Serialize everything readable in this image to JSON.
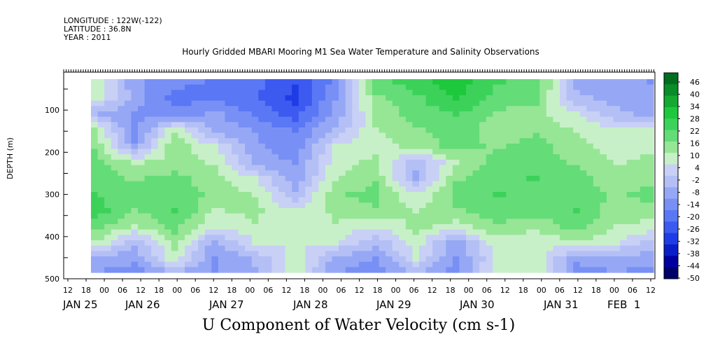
{
  "header": {
    "longitude": "LONGITUDE : 122W(-122)",
    "latitude": "LATITUDE : 36.8N",
    "year": "YEAR : 2011"
  },
  "chart_data": {
    "type": "heatmap",
    "title": "Hourly Gridded MBARI Mooring M1 Sea Water Temperature and Salinity Observations",
    "xlabel": "U Component of Water Velocity (cm s-1)",
    "ylabel": "DEPTH (m)",
    "ylim": [
      500,
      10
    ],
    "yticks": [
      100,
      200,
      300,
      400,
      500
    ],
    "x_start_hour_label": "12",
    "hour_tick_labels": [
      "12",
      "18",
      "00",
      "06",
      "12",
      "18",
      "00",
      "06",
      "12",
      "18",
      "00",
      "06",
      "12",
      "18",
      "00",
      "06",
      "12",
      "18",
      "00",
      "06",
      "12",
      "18",
      "00",
      "06",
      "12",
      "18",
      "00",
      "06",
      "12",
      "18",
      "00",
      "06",
      "12"
    ],
    "day_labels": [
      "JAN 25",
      "JAN 26",
      "JAN 27",
      "JAN 28",
      "JAN 29",
      "JAN 30",
      "JAN 31",
      "FEB  1"
    ],
    "colorbar": {
      "labels": [
        "46",
        "40",
        "34",
        "28",
        "22",
        "16",
        "10",
        "4",
        "-2",
        "-8",
        "-14",
        "-20",
        "-26",
        "-32",
        "-38",
        "-44",
        "-50"
      ],
      "min": -50,
      "max": 49,
      "colors": [
        "#00006a",
        "#0000a0",
        "#0a1ec8",
        "#1e3ce6",
        "#3c5af0",
        "#5a78f5",
        "#7890f5",
        "#96a8f5",
        "#b4c0f5",
        "#c8d0f5",
        "#c8f0c8",
        "#96e696",
        "#64dc78",
        "#3cd25a",
        "#1ec83c",
        "#14aa32",
        "#0a8c28",
        "#006e1e"
      ]
    },
    "note_columns": [
      "JAN 25 18",
      "JAN 26 00",
      "JAN 26 12",
      "JAN 27 00",
      "JAN 27 12",
      "JAN 28 00",
      "JAN 28 12",
      "JAN 29 00",
      "JAN 29 12",
      "JAN 30 00",
      "JAN 30 12",
      "JAN 31 00",
      "JAN 31 12",
      "FEB  1 00",
      "FEB  1 12"
    ],
    "depth_rows": [
      20,
      60,
      100,
      140,
      180,
      220,
      260,
      300,
      340,
      380,
      420,
      460,
      490
    ],
    "values": [
      [
        10,
        -10,
        -15,
        -18,
        -20,
        -28,
        -15,
        18,
        25,
        30,
        22,
        20,
        -8,
        -10,
        -12
      ],
      [
        8,
        -8,
        -20,
        -18,
        -22,
        -30,
        -12,
        15,
        20,
        28,
        20,
        18,
        -5,
        -8,
        -10
      ],
      [
        -5,
        -12,
        -15,
        -10,
        -18,
        -25,
        -10,
        12,
        18,
        22,
        15,
        12,
        5,
        -5,
        -8
      ],
      [
        12,
        -15,
        10,
        -8,
        -12,
        -18,
        -5,
        10,
        15,
        20,
        12,
        15,
        10,
        5,
        5
      ],
      [
        15,
        -10,
        15,
        5,
        -10,
        -15,
        5,
        8,
        12,
        18,
        15,
        18,
        12,
        8,
        10
      ],
      [
        18,
        10,
        12,
        10,
        -8,
        -12,
        8,
        12,
        -5,
        10,
        18,
        20,
        15,
        10,
        12
      ],
      [
        20,
        15,
        18,
        12,
        5,
        -10,
        10,
        15,
        -8,
        15,
        20,
        22,
        18,
        12,
        15
      ],
      [
        22,
        18,
        20,
        15,
        10,
        -5,
        15,
        18,
        5,
        18,
        22,
        20,
        20,
        15,
        18
      ],
      [
        25,
        15,
        22,
        10,
        12,
        5,
        12,
        15,
        10,
        15,
        20,
        18,
        22,
        12,
        15
      ],
      [
        18,
        10,
        18,
        5,
        10,
        8,
        10,
        5,
        12,
        8,
        15,
        12,
        18,
        10,
        8
      ],
      [
        10,
        -5,
        12,
        -8,
        5,
        5,
        5,
        -5,
        8,
        -10,
        8,
        5,
        10,
        5,
        -5
      ],
      [
        -8,
        -10,
        8,
        -12,
        -5,
        8,
        -8,
        -12,
        5,
        -12,
        5,
        8,
        -10,
        -8,
        -10
      ],
      [
        -12,
        -15,
        -10,
        -12,
        -8,
        10,
        -12,
        -15,
        -8,
        -15,
        8,
        10,
        -15,
        -12,
        -15
      ]
    ]
  }
}
